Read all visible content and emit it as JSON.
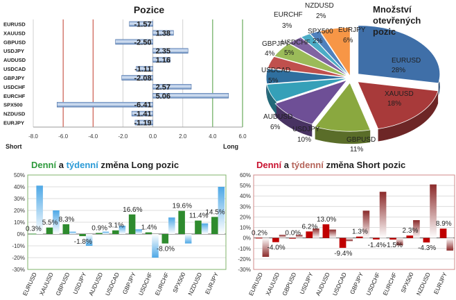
{
  "chart_data": [
    {
      "type": "bar",
      "orientation": "horizontal",
      "title": "Pozice",
      "categories": [
        "EURUSD",
        "XAUUSD",
        "GBPUSD",
        "USDJPY",
        "AUDUSD",
        "USDCAD",
        "GBPJPY",
        "USDCHF",
        "EURCHF",
        "SPX500",
        "NZDUSD",
        "EURJPY"
      ],
      "values": [
        -1.57,
        1.38,
        -2.5,
        2.35,
        1.16,
        -1.11,
        -2.08,
        2.57,
        5.06,
        -6.41,
        -1.41,
        -1.19
      ],
      "value_labels": [
        "-1.57",
        "1.38",
        "-2.50",
        "2.35",
        "1.16",
        "-1.11",
        "-2.08",
        "2.57",
        "5.06",
        "-6.41",
        "-1.41",
        "-1.19"
      ],
      "xlim": [
        -8,
        6
      ],
      "xticks": [
        "-8.0",
        "-6.0",
        "-4.0",
        "-2.0",
        "0.0",
        "2.0",
        "4.0",
        "6.0"
      ],
      "left_label": "Short",
      "right_label": "Long",
      "colors": {
        "short_line": "#c0392b",
        "long_line": "#4a9a3a",
        "bar": "#5b82b8"
      }
    },
    {
      "type": "pie",
      "title": "Množství otevřených pozic",
      "title_lines": [
        "Množství",
        "otevřených",
        "pozic"
      ],
      "slices": [
        {
          "name": "EURUSD",
          "value": 28,
          "label": "28%",
          "color": "#3f6fa8"
        },
        {
          "name": "XAUUSD",
          "value": 18,
          "label": "18%",
          "color": "#a83a3a"
        },
        {
          "name": "GBPUSD",
          "value": 11,
          "label": "11%",
          "color": "#8aa83f"
        },
        {
          "name": "USDJPY",
          "value": 10,
          "label": "10%",
          "color": "#6e4f96"
        },
        {
          "name": "AUDUSD",
          "value": 6,
          "label": "6%",
          "color": "#35a0b8"
        },
        {
          "name": "USDCAD",
          "value": 5,
          "label": "5%",
          "color": "#2f6f9f"
        },
        {
          "name": "GBPJPY",
          "value": 4,
          "label": "4%",
          "color": "#c0504d"
        },
        {
          "name": "USDCHF",
          "value": 5,
          "label": "5%",
          "color": "#9bbb59"
        },
        {
          "name": "EURCHF",
          "value": 3,
          "label": "3%",
          "color": "#8064a2"
        },
        {
          "name": "NZDUSD",
          "value": 2,
          "label": "2%",
          "color": "#4bacc6"
        },
        {
          "name": "SPX500",
          "value": 2,
          "label": "2%",
          "color": "#4f81bd"
        },
        {
          "name": "EURJPY",
          "value": 6,
          "label": "6%",
          "color": "#f79646"
        }
      ]
    },
    {
      "type": "bar",
      "title_parts": [
        {
          "text": "Denní",
          "color": "#2e9a3c"
        },
        {
          "text": " a ",
          "color": "#1f1f1f"
        },
        {
          "text": "týdenní",
          "color": "#2a9ad6"
        },
        {
          "text": " změna Long pozic",
          "color": "#1f1f1f"
        }
      ],
      "categories": [
        "EURUSD",
        "XAUUSD",
        "GBPUSD",
        "USDJPY",
        "AUDUSD",
        "USDCAD",
        "GBPJPY",
        "USDCHF",
        "EURCHF",
        "SPX500",
        "NZDUSD",
        "EURJPY"
      ],
      "series": [
        {
          "name": "Denní",
          "color": "#2e8b2e",
          "values": [
            0.3,
            5.5,
            8.3,
            -1.8,
            0.9,
            3.1,
            16.6,
            1.4,
            -8.0,
            19.6,
            11.4,
            14.5
          ]
        },
        {
          "name": "týdenní",
          "color": "#4ea8e6",
          "values": [
            41,
            20,
            2,
            -10,
            2,
            7,
            4,
            -20,
            14,
            -8,
            9,
            40
          ]
        }
      ],
      "data_labels": [
        "0.3%",
        "5.5%",
        "8.3%",
        "-1.8%",
        "0.9%",
        "3.1%",
        "16.6%",
        "1.4%",
        "-8.0%",
        "19.6%",
        "11.4%",
        "14.5%"
      ],
      "ylim": [
        -30,
        50
      ],
      "yticks": [
        "50%",
        "40%",
        "30%",
        "20%",
        "10%",
        "0%",
        "-10%",
        "-20%",
        "-30%"
      ]
    },
    {
      "type": "bar",
      "title_parts": [
        {
          "text": "Denní",
          "color": "#c8102e"
        },
        {
          "text": " a ",
          "color": "#1f1f1f"
        },
        {
          "text": "týdenní",
          "color": "#b5645a"
        },
        {
          "text": " změna Short pozic",
          "color": "#1f1f1f"
        }
      ],
      "categories": [
        "EURUSD",
        "XAUUSD",
        "GBPUSD",
        "USDJPY",
        "AUDUSD",
        "USDCAD",
        "GBPJPY",
        "USDCHF",
        "EURCHF",
        "SPX500",
        "NZDUSD",
        "EURJPY"
      ],
      "series": [
        {
          "name": "Denní",
          "color": "#c00000",
          "values": [
            0.2,
            -4.0,
            0.0,
            6.2,
            13.0,
            -9.4,
            1.3,
            -1.4,
            -1.5,
            2.3,
            -4.3,
            8.9
          ]
        },
        {
          "name": "týdenní",
          "color": "#8b2a2a",
          "values": [
            -18,
            3,
            3,
            9,
            8,
            -3,
            26,
            44,
            -7,
            17,
            51,
            -12
          ]
        }
      ],
      "data_labels": [
        "0.2%",
        "-4.0%",
        "0.0%",
        "6.2%",
        "13.0%",
        "-9.4%",
        "1.3%",
        "-1.4%",
        "-1.5%",
        "2.3%",
        "-4.3%",
        "8.9%"
      ],
      "ylim": [
        -30,
        60
      ],
      "yticks": [
        "60%",
        "50%",
        "40%",
        "30%",
        "20%",
        "10%",
        "0%",
        "-10%",
        "-20%",
        "-30%"
      ]
    }
  ]
}
